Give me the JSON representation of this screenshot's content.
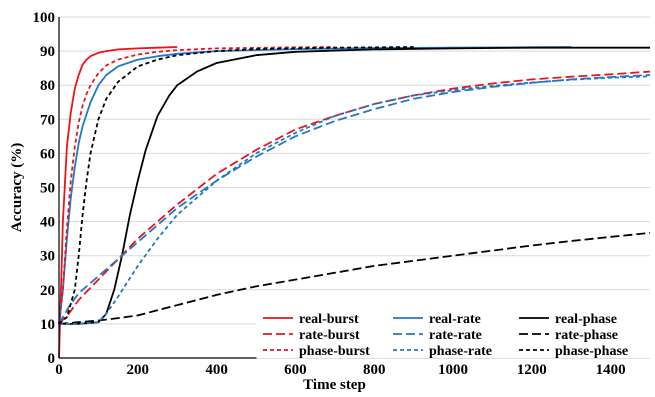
{
  "chart_data": {
    "type": "line",
    "title": "",
    "xlabel": "Time step",
    "ylabel": "Accuracy (%)",
    "xlim": [
      0,
      1500
    ],
    "ylim": [
      0,
      100
    ],
    "xticks": [
      0,
      200,
      400,
      600,
      800,
      1000,
      1200,
      1400
    ],
    "yticks": [
      0,
      10,
      20,
      30,
      40,
      50,
      60,
      70,
      80,
      90,
      100
    ],
    "grid": "horizontal",
    "legend_position": "bottom-right",
    "series": [
      {
        "name": "real-burst",
        "color": "#e8141b",
        "dash": "solid",
        "x": [
          0,
          5,
          10,
          20,
          30,
          40,
          50,
          60,
          70,
          80,
          100,
          120,
          150,
          200,
          250,
          300
        ],
        "y": [
          0,
          20,
          40,
          62,
          72,
          79,
          83,
          86,
          87.5,
          88.5,
          89.5,
          90,
          90.5,
          90.8,
          91,
          91.2
        ]
      },
      {
        "name": "real-rate",
        "color": "#1f78c8",
        "dash": "solid",
        "x": [
          0,
          10,
          20,
          30,
          40,
          50,
          60,
          80,
          100,
          120,
          150,
          200,
          250,
          300,
          400,
          600,
          800,
          1000,
          1300
        ],
        "y": [
          10,
          20,
          35,
          47,
          56,
          63,
          68,
          75,
          80,
          83,
          85.5,
          87.5,
          88.5,
          89.2,
          90,
          90.6,
          90.9,
          91,
          91.2
        ]
      },
      {
        "name": "real-phase",
        "color": "#000000",
        "dash": "solid",
        "x": [
          0,
          50,
          100,
          120,
          140,
          160,
          180,
          200,
          220,
          250,
          280,
          300,
          350,
          400,
          500,
          600,
          800,
          1000,
          1200,
          1500
        ],
        "y": [
          10,
          10,
          10.5,
          13,
          20,
          30,
          42,
          52,
          61,
          71,
          77,
          80,
          84,
          86.5,
          88.8,
          89.8,
          90.5,
          90.8,
          91,
          91
        ]
      },
      {
        "name": "rate-burst",
        "color": "#e8141b",
        "dash": "long",
        "x": [
          0,
          25,
          50,
          100,
          150,
          200,
          300,
          400,
          500,
          600,
          700,
          800,
          900,
          1000,
          1100,
          1200,
          1300,
          1400,
          1500
        ],
        "y": [
          10,
          13,
          17,
          23,
          29,
          35,
          45,
          54,
          61,
          67,
          71,
          74.5,
          77,
          79,
          80.5,
          81.7,
          82.5,
          83.2,
          84
        ]
      },
      {
        "name": "rate-rate",
        "color": "#1f78c8",
        "dash": "long",
        "x": [
          0,
          25,
          50,
          100,
          150,
          200,
          300,
          400,
          500,
          600,
          700,
          800,
          900,
          1000,
          1100,
          1200,
          1300,
          1400,
          1500
        ],
        "y": [
          10,
          15,
          19,
          24,
          29,
          34,
          44,
          52,
          59,
          65,
          69.5,
          73,
          76,
          78,
          79.5,
          80.7,
          81.7,
          82.4,
          83
        ]
      },
      {
        "name": "rate-phase",
        "color": "#000000",
        "dash": "long",
        "x": [
          0,
          50,
          100,
          150,
          200,
          300,
          400,
          500,
          600,
          700,
          800,
          900,
          1000,
          1100,
          1200,
          1300,
          1400,
          1500
        ],
        "y": [
          10,
          10.5,
          11,
          11.7,
          12.5,
          15.5,
          18.5,
          21,
          23,
          25,
          27,
          28.5,
          30,
          31.5,
          33,
          34.3,
          35.5,
          36.7
        ]
      },
      {
        "name": "phase-burst",
        "color": "#e8141b",
        "dash": "short",
        "x": [
          0,
          10,
          20,
          30,
          40,
          50,
          60,
          70,
          80,
          100,
          120,
          150,
          200,
          250,
          300,
          400,
          600,
          700
        ],
        "y": [
          10,
          20,
          38,
          52,
          62,
          69,
          74,
          77.5,
          80,
          83.5,
          85.8,
          87.5,
          89,
          89.8,
          90.3,
          90.8,
          91.1,
          91.2
        ]
      },
      {
        "name": "phase-rate",
        "color": "#1f78c8",
        "dash": "short",
        "x": [
          0,
          50,
          100,
          120,
          150,
          200,
          250,
          300,
          400,
          500,
          600,
          700,
          800,
          900,
          1000,
          1100,
          1200,
          1300,
          1400,
          1500
        ],
        "y": [
          10,
          10,
          10.5,
          13,
          18,
          27,
          35,
          42,
          52,
          60,
          66,
          71,
          74.5,
          77,
          78.5,
          79.8,
          80.8,
          81.6,
          82.2,
          82.6
        ]
      },
      {
        "name": "phase-phase",
        "color": "#000000",
        "dash": "short",
        "x": [
          0,
          20,
          40,
          50,
          60,
          70,
          80,
          100,
          120,
          150,
          200,
          250,
          300,
          400,
          500,
          700,
          900
        ],
        "y": [
          10,
          12,
          20,
          30,
          42,
          52,
          60,
          70,
          76,
          81,
          85.5,
          87.5,
          88.8,
          90,
          90.6,
          91,
          91.2
        ]
      }
    ],
    "legend_order": [
      "real-burst",
      "real-rate",
      "real-phase",
      "rate-burst",
      "rate-rate",
      "rate-phase",
      "phase-burst",
      "phase-rate",
      "phase-phase"
    ]
  }
}
